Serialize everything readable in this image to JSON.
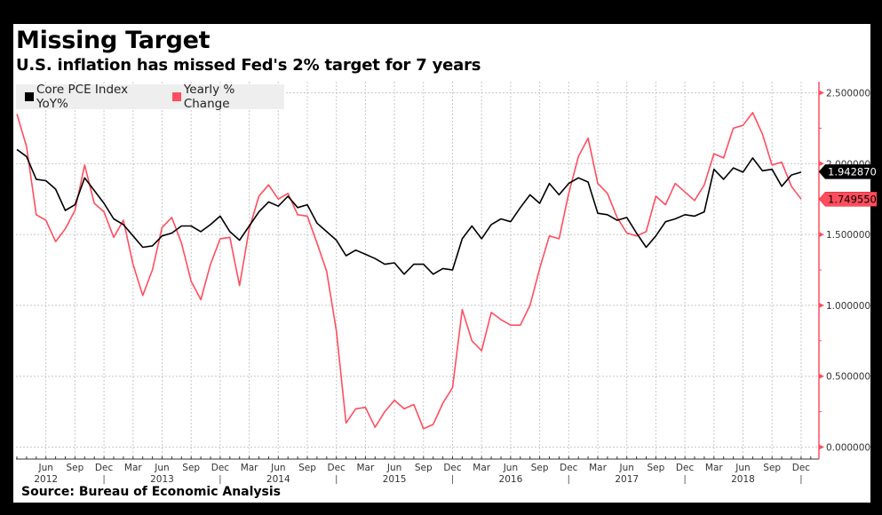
{
  "header": {
    "title": "Missing Target",
    "subtitle": "U.S. inflation has missed Fed's 2% target for 7 years"
  },
  "footer": {
    "source": "Source: Bureau of Economic Analysis"
  },
  "colors": {
    "core_pce": "#000000",
    "yearly_change": "#ff4d5e",
    "axis": "#ff4d5e",
    "grid": "#c8c8c8"
  },
  "chart_data": {
    "type": "line",
    "title": "Missing Target",
    "subtitle": "U.S. inflation has missed Fed's 2% target for 7 years",
    "xlabel": "",
    "ylabel": "",
    "x_start": "2012-03",
    "x_end": "2018-12",
    "frequency": "monthly",
    "ylim": [
      0,
      2.5
    ],
    "y_ticks": [
      "2.500000",
      "2.000000",
      "1.500000",
      "1.000000",
      "0.500000",
      "0.000000"
    ],
    "y_tick_values": [
      2.5,
      2.0,
      1.5,
      1.0,
      0.5,
      0.0
    ],
    "y_axis_side": "right",
    "x_month_labels": [
      "Jun",
      "Sep",
      "Dec",
      "Mar",
      "Jun",
      "Sep",
      "Dec",
      "Mar",
      "Jun",
      "Sep",
      "Dec",
      "Mar",
      "Jun",
      "Sep",
      "Dec",
      "Mar",
      "Jun",
      "Sep",
      "Dec",
      "Mar",
      "Jun",
      "Sep",
      "Dec",
      "Mar",
      "Jun",
      "Sep",
      "Dec"
    ],
    "x_year_labels": [
      "2012",
      "2013",
      "2014",
      "2015",
      "2016",
      "2017",
      "2018"
    ],
    "grid": true,
    "legend_position": "top-left",
    "series": [
      {
        "name": "Core PCE Index YoY%",
        "color": "#000000",
        "last_value_label": "1.942870",
        "values": [
          2.1,
          2.05,
          1.89,
          1.88,
          1.82,
          1.67,
          1.71,
          1.9,
          1.81,
          1.72,
          1.61,
          1.57,
          1.49,
          1.41,
          1.42,
          1.49,
          1.51,
          1.56,
          1.56,
          1.52,
          1.57,
          1.63,
          1.52,
          1.46,
          1.56,
          1.66,
          1.73,
          1.7,
          1.77,
          1.69,
          1.71,
          1.58,
          1.52,
          1.46,
          1.35,
          1.39,
          1.36,
          1.33,
          1.29,
          1.3,
          1.22,
          1.29,
          1.29,
          1.22,
          1.26,
          1.25,
          1.47,
          1.56,
          1.47,
          1.57,
          1.61,
          1.59,
          1.69,
          1.78,
          1.72,
          1.86,
          1.78,
          1.86,
          1.9,
          1.87,
          1.65,
          1.64,
          1.6,
          1.62,
          1.51,
          1.41,
          1.49,
          1.59,
          1.61,
          1.64,
          1.63,
          1.66,
          1.96,
          1.89,
          1.97,
          1.94,
          2.04,
          1.95,
          1.96,
          1.84,
          1.92,
          1.94
        ]
      },
      {
        "name": "Yearly % Change",
        "color": "#ff4d5e",
        "last_value_label": "1.749550",
        "values": [
          2.35,
          2.12,
          1.64,
          1.6,
          1.45,
          1.54,
          1.67,
          1.99,
          1.72,
          1.66,
          1.48,
          1.6,
          1.29,
          1.07,
          1.25,
          1.55,
          1.62,
          1.44,
          1.17,
          1.04,
          1.29,
          1.47,
          1.48,
          1.14,
          1.54,
          1.77,
          1.85,
          1.75,
          1.79,
          1.64,
          1.63,
          1.44,
          1.24,
          0.82,
          0.17,
          0.27,
          0.28,
          0.14,
          0.25,
          0.33,
          0.27,
          0.3,
          0.13,
          0.16,
          0.31,
          0.42,
          0.97,
          0.75,
          0.68,
          0.95,
          0.9,
          0.86,
          0.86,
          1.0,
          1.26,
          1.49,
          1.47,
          1.79,
          2.05,
          2.18,
          1.86,
          1.79,
          1.62,
          1.51,
          1.49,
          1.52,
          1.77,
          1.71,
          1.86,
          1.8,
          1.74,
          1.85,
          2.07,
          2.04,
          2.25,
          2.27,
          2.36,
          2.21,
          1.99,
          2.01,
          1.84,
          1.75
        ]
      }
    ]
  }
}
